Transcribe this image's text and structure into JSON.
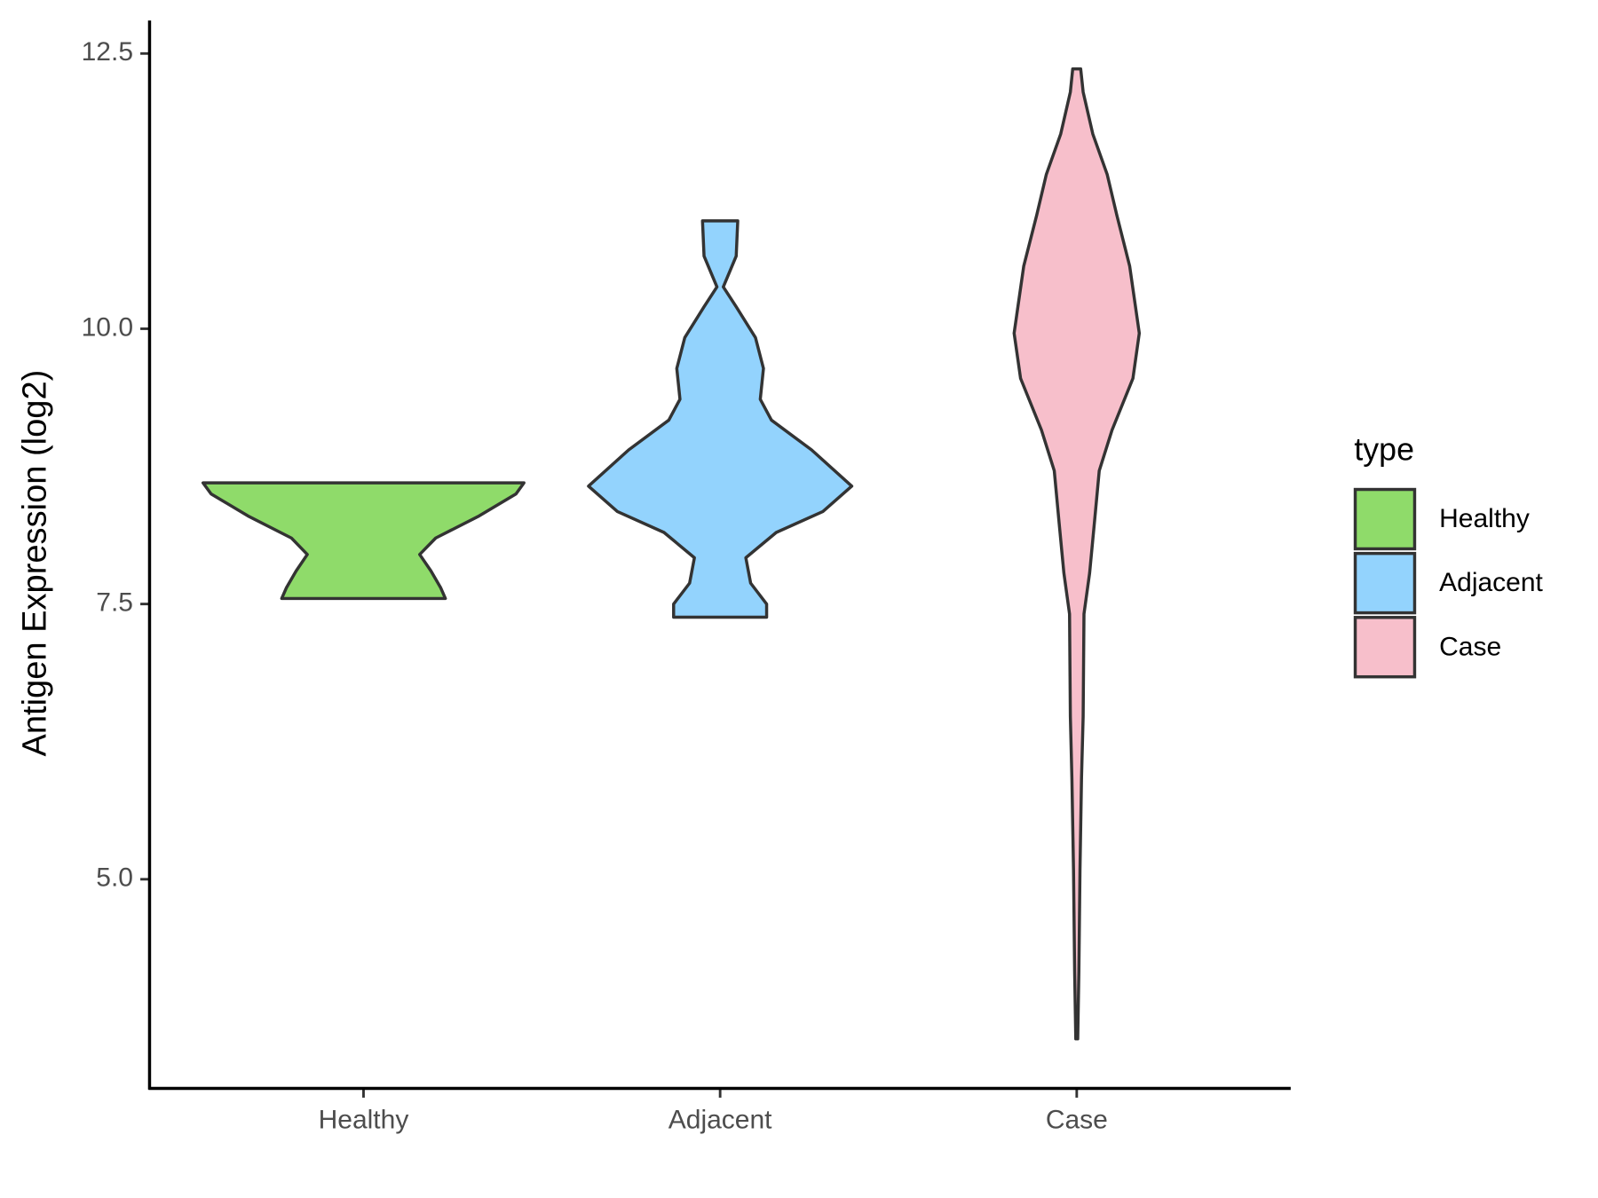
{
  "chart_data": {
    "type": "violin",
    "y_label": "Antigen Expression (log2)",
    "legend_title": "type",
    "legend_position": "right",
    "categories": [
      "Healthy",
      "Adjacent",
      "Case"
    ],
    "series": [
      {
        "name": "Healthy",
        "color": "#8fdb6a",
        "y": [
          8.6,
          8.5,
          8.3,
          8.1,
          7.95,
          7.8,
          7.65,
          7.55
        ],
        "density": [
          1.0,
          0.95,
          0.72,
          0.45,
          0.35,
          0.42,
          0.48,
          0.51
        ]
      },
      {
        "name": "Adjacent",
        "color": "#93d3fd",
        "y": [
          10.98,
          10.66,
          10.38,
          10.2,
          9.92,
          9.64,
          9.36,
          9.17,
          8.9,
          8.57,
          8.34,
          8.15,
          7.92,
          7.69,
          7.5,
          7.38
        ],
        "density": [
          0.11,
          0.1,
          0.02,
          0.1,
          0.22,
          0.27,
          0.25,
          0.32,
          0.57,
          0.82,
          0.64,
          0.35,
          0.16,
          0.19,
          0.29,
          0.29
        ]
      },
      {
        "name": "Case",
        "color": "#f7bfcb",
        "y": [
          12.36,
          12.15,
          11.77,
          11.4,
          11.03,
          10.57,
          9.96,
          9.55,
          9.08,
          8.71,
          8.24,
          7.78,
          7.41,
          6.48,
          5.92,
          5.08,
          4.15,
          3.55
        ],
        "density": [
          0.025,
          0.04,
          0.1,
          0.19,
          0.25,
          0.33,
          0.39,
          0.35,
          0.22,
          0.14,
          0.11,
          0.08,
          0.045,
          0.04,
          0.03,
          0.02,
          0.013,
          0.006
        ]
      }
    ],
    "ylim": [
      3.1,
      12.8
    ],
    "yticks": [
      {
        "value": 5,
        "label": "5.0"
      },
      {
        "value": 7.5,
        "label": "7.5"
      },
      {
        "value": 10,
        "label": "10.0"
      },
      {
        "value": 12.5,
        "label": "12.5"
      }
    ]
  }
}
